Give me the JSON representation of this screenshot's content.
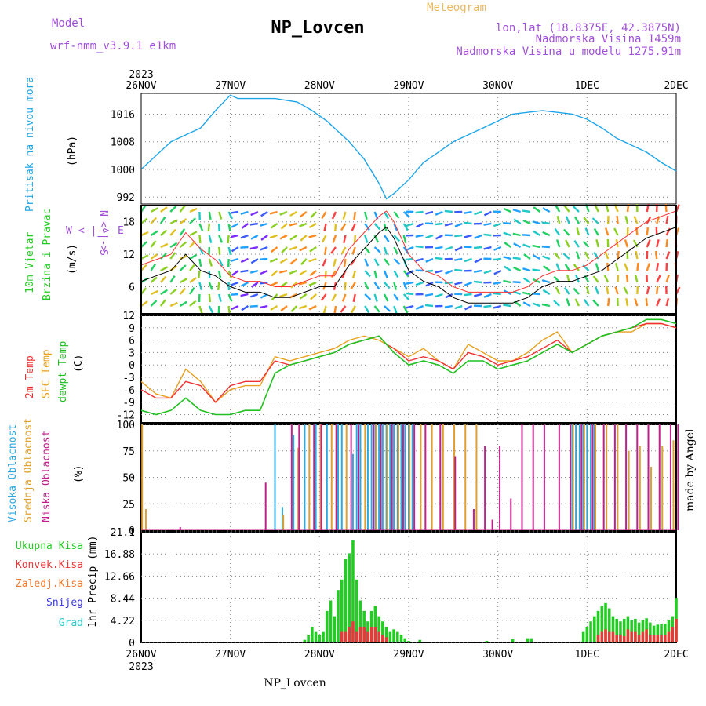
{
  "header": {
    "model_label": "Model",
    "model_name": "wrf-nmm_v3.9.1 e1km",
    "station": "NP_Lovcen",
    "title": "Meteogram",
    "coords": "lon,lat (18.8375E, 42.3875N)",
    "elevation": "Nadmorska Visina 1459m",
    "model_elevation": "Nadmorska Visina u modelu 1275.91m",
    "year_top": "2023",
    "year_bottom": "2023",
    "footer_station": "NP_Lovcen",
    "watermark": "made by Angel"
  },
  "time_axis": {
    "labels": [
      "26NOV",
      "27NOV",
      "28NOV",
      "29NOV",
      "30NOV",
      "1DEC",
      "2DEC"
    ],
    "hours_total": 144
  },
  "colors": {
    "pressure": "#1ea5e8",
    "wind_speed": "#000000",
    "gust": "#ff3030",
    "temp2m": "#f03030",
    "sfc_temp": "#e8a020",
    "dewpoint": "#20c020",
    "cloud_high": "#2aa8e0",
    "cloud_mid": "#e0a030",
    "cloud_low": "#c0208a",
    "precip_total": "#22cc22",
    "precip_conv": "#e83838",
    "precip_frz": "#f07a30",
    "snow": "#3838e0",
    "graupel": "#30c8c8"
  },
  "panels": {
    "pressure": {
      "label": "Pritisak na nivou mora",
      "unit": "(hPa)",
      "ticks": [
        "992",
        "1000",
        "1008",
        "1016"
      ],
      "ylim": [
        990,
        1022
      ]
    },
    "wind": {
      "label1": "10m Vjetar",
      "label2": "Brzina i Pravac",
      "unit": "(m/s)",
      "ticks": [
        "6",
        "12",
        "18"
      ],
      "ylim": [
        1,
        21
      ],
      "compass_w": "W",
      "compass_e": "E",
      "compass_n": "N",
      "compass_s": "S",
      "compass_arrows_h": "<-|->",
      "compass_arrows_v": "<-|->"
    },
    "temp": {
      "label_2m": "2m Temp",
      "label_sfc": "SFC Temp",
      "label_dew": "dewpt Temp",
      "unit": "(C)",
      "ticks": [
        "-12",
        "-9",
        "-6",
        "-3",
        "0",
        "3",
        "6",
        "9",
        "12"
      ],
      "ylim": [
        -14,
        12
      ]
    },
    "cloud": {
      "label_high": "Visoka Oblacnost",
      "label_mid": "Srednja Oblacnost",
      "label_low": "Niska Oblacnost",
      "unit": "(%)",
      "ticks": [
        "0",
        "25",
        "50",
        "75",
        "100"
      ],
      "ylim": [
        0,
        100
      ]
    },
    "precip": {
      "legend": [
        "Ukupna Kisa",
        "Konvek.Kisa",
        "Zaledj.Kisa",
        "Snijeg",
        "Grad"
      ],
      "label": "1hr Precip (mm)",
      "ticks": [
        "0",
        "4.22",
        "8.44",
        "12.66",
        "16.88",
        "21.1"
      ],
      "ylim": [
        0,
        21.1
      ]
    }
  },
  "chart_data": [
    {
      "type": "line",
      "title": "Pritisak na nivou mora",
      "ylabel": "(hPa)",
      "x_unit": "hours since 26NOV 00 UTC",
      "ylim": [
        990,
        1022
      ],
      "series": [
        {
          "name": "Pritisak na nivou mora",
          "x": [
            0,
            4,
            8,
            12,
            16,
            20,
            24,
            26,
            30,
            36,
            42,
            46,
            50,
            56,
            60,
            64,
            66,
            68,
            72,
            76,
            80,
            84,
            88,
            92,
            96,
            100,
            104,
            108,
            112,
            116,
            120,
            124,
            128,
            132,
            136,
            140,
            144
          ],
          "values": [
            1000,
            1004,
            1008,
            1010,
            1012,
            1017,
            1021.5,
            1020.5,
            1020.5,
            1020.5,
            1019.5,
            1017,
            1014,
            1008,
            1003,
            996,
            991.5,
            993,
            997,
            1002,
            1005,
            1008,
            1010,
            1012,
            1014,
            1016,
            1016.5,
            1017,
            1016.5,
            1016,
            1014.5,
            1012,
            1009,
            1007,
            1005,
            1002,
            999.5
          ]
        }
      ]
    },
    {
      "type": "line",
      "title": "10m Vjetar Brzina i Pravac",
      "ylabel": "(m/s)",
      "x_unit": "hours since 26NOV 00 UTC",
      "ylim": [
        1,
        21
      ],
      "series": [
        {
          "name": "wind speed",
          "x": [
            0,
            4,
            8,
            12,
            16,
            20,
            24,
            28,
            32,
            36,
            40,
            44,
            48,
            52,
            56,
            60,
            64,
            66,
            68,
            72,
            76,
            80,
            84,
            88,
            92,
            96,
            100,
            104,
            108,
            112,
            116,
            120,
            124,
            128,
            132,
            136,
            140,
            144
          ],
          "values": [
            7,
            8,
            9,
            12,
            9,
            8,
            6,
            5,
            5,
            4,
            4,
            5,
            6,
            6,
            10,
            13,
            16,
            17,
            15,
            9,
            7,
            6,
            4,
            3,
            3,
            3,
            3,
            4,
            6,
            7,
            7,
            8,
            9,
            11,
            13,
            15,
            16,
            17
          ]
        },
        {
          "name": "gust",
          "x": [
            0,
            4,
            8,
            12,
            16,
            20,
            24,
            28,
            32,
            36,
            40,
            44,
            48,
            52,
            56,
            60,
            64,
            66,
            68,
            72,
            76,
            80,
            84,
            88,
            92,
            96,
            100,
            104,
            108,
            112,
            116,
            120,
            124,
            128,
            132,
            136,
            140,
            144
          ],
          "values": [
            10,
            11,
            12,
            16,
            13,
            11,
            8,
            7,
            7,
            6,
            6,
            7,
            8,
            8,
            13,
            16,
            19,
            20,
            18,
            12,
            9,
            8,
            6,
            5,
            5,
            5,
            5,
            6,
            8,
            9,
            9,
            10,
            12,
            14,
            16,
            18,
            19,
            20
          ]
        }
      ]
    },
    {
      "type": "line",
      "title": "2m Temp / SFC Temp / dewpt Temp",
      "ylabel": "(C)",
      "x_unit": "hours since 26NOV 00 UTC",
      "ylim": [
        -14,
        12
      ],
      "series": [
        {
          "name": "2m Temp",
          "x": [
            0,
            4,
            8,
            12,
            16,
            20,
            24,
            28,
            32,
            36,
            40,
            44,
            48,
            52,
            56,
            60,
            64,
            66,
            68,
            72,
            76,
            80,
            84,
            88,
            92,
            96,
            100,
            104,
            108,
            112,
            116,
            120,
            124,
            128,
            132,
            136,
            140,
            144
          ],
          "values": [
            -6,
            -8,
            -8,
            -4,
            -5,
            -9,
            -5,
            -4,
            -4,
            1,
            0,
            1,
            2,
            3,
            5,
            6,
            7,
            5,
            4,
            1,
            2,
            1,
            -1,
            3,
            2,
            0,
            1,
            2,
            4,
            6,
            3,
            5,
            7,
            8,
            9,
            10,
            10,
            9
          ]
        },
        {
          "name": "SFC Temp",
          "x": [
            0,
            4,
            8,
            12,
            16,
            20,
            24,
            28,
            32,
            36,
            40,
            44,
            48,
            52,
            56,
            60,
            64,
            66,
            68,
            72,
            76,
            80,
            84,
            88,
            92,
            96,
            100,
            104,
            108,
            112,
            116,
            120,
            124,
            128,
            132,
            136,
            140,
            144
          ],
          "values": [
            -4,
            -7,
            -8,
            -1,
            -4,
            -9,
            -6,
            -5,
            -5,
            2,
            1,
            2,
            3,
            4,
            6,
            7,
            6,
            5,
            4,
            2,
            4,
            1,
            -1,
            5,
            3,
            1,
            1,
            3,
            6,
            8,
            3,
            5,
            7,
            8,
            8,
            10,
            10,
            9
          ]
        },
        {
          "name": "dewpt Temp",
          "x": [
            0,
            4,
            8,
            12,
            16,
            20,
            24,
            28,
            32,
            36,
            40,
            44,
            48,
            52,
            56,
            60,
            64,
            66,
            68,
            72,
            76,
            80,
            84,
            88,
            92,
            96,
            100,
            104,
            108,
            112,
            116,
            120,
            124,
            128,
            132,
            136,
            140,
            144
          ],
          "values": [
            -11,
            -12,
            -11,
            -8,
            -11,
            -12,
            -12,
            -11,
            -11,
            -2,
            0,
            1,
            2,
            3,
            5,
            6,
            7,
            5,
            3,
            0,
            1,
            0,
            -2,
            1,
            1,
            -1,
            0,
            1,
            3,
            5,
            3,
            5,
            7,
            8,
            9,
            11,
            11,
            10
          ]
        }
      ]
    },
    {
      "type": "bar",
      "title": "Oblacnost",
      "ylabel": "(%)",
      "x_unit": "hours since 26NOV 00 UTC",
      "ylim": [
        0,
        100
      ],
      "series": [
        {
          "name": "Visoka Oblacnost",
          "x": [
            36,
            38,
            41,
            44,
            47,
            50,
            53,
            54,
            57,
            58,
            59,
            61,
            62,
            63,
            64,
            65,
            66,
            67,
            68,
            69,
            70,
            71,
            72,
            73,
            116,
            117,
            118,
            119,
            120,
            121,
            122
          ],
          "values": [
            100,
            22,
            90,
            100,
            100,
            100,
            100,
            100,
            72,
            100,
            100,
            100,
            100,
            100,
            100,
            100,
            100,
            100,
            100,
            100,
            100,
            100,
            100,
            100,
            100,
            100,
            100,
            100,
            100,
            100,
            100
          ]
        },
        {
          "name": "Srednja Oblacnost",
          "x": [
            0,
            1,
            38,
            42,
            45,
            48,
            51,
            55,
            60,
            63,
            66,
            69,
            72,
            75,
            78,
            81,
            84,
            87,
            90,
            116,
            119,
            122,
            125,
            128,
            131,
            134,
            137,
            140,
            143
          ],
          "values": [
            100,
            20,
            15,
            78,
            100,
            100,
            100,
            100,
            100,
            100,
            100,
            100,
            100,
            100,
            100,
            100,
            100,
            100,
            100,
            100,
            100,
            100,
            100,
            100,
            75,
            80,
            60,
            80,
            85
          ]
        },
        {
          "name": "Niska Oblacnost",
          "x": [
            10,
            33,
            40,
            42,
            46,
            48,
            52,
            56,
            58,
            62,
            64,
            67,
            70,
            73,
            76,
            80,
            84,
            89,
            92,
            94,
            96,
            99,
            102,
            105,
            108,
            112,
            115,
            118,
            121,
            124,
            127,
            130,
            133,
            136,
            139,
            142,
            144
          ],
          "values": [
            3,
            45,
            100,
            100,
            100,
            100,
            100,
            100,
            100,
            100,
            100,
            100,
            100,
            100,
            100,
            100,
            70,
            20,
            80,
            10,
            80,
            30,
            100,
            100,
            100,
            100,
            100,
            100,
            100,
            100,
            100,
            100,
            100,
            100,
            100,
            100,
            100
          ]
        }
      ]
    },
    {
      "type": "bar",
      "title": "1hr Precip",
      "ylabel": "(mm)",
      "x_unit": "hours since 26NOV 00 UTC",
      "ylim": [
        0,
        21.1
      ],
      "series": [
        {
          "name": "Ukupna Kisa",
          "x": [
            44,
            45,
            46,
            47,
            48,
            49,
            50,
            51,
            52,
            53,
            54,
            55,
            56,
            57,
            58,
            59,
            60,
            61,
            62,
            63,
            64,
            65,
            66,
            67,
            68,
            69,
            70,
            71,
            72,
            75,
            93,
            100,
            104,
            105,
            119,
            120,
            121,
            122,
            123,
            124,
            125,
            126,
            127,
            128,
            129,
            130,
            131,
            132,
            133,
            134,
            135,
            136,
            137,
            138,
            139,
            140,
            141,
            142,
            143,
            144
          ],
          "values": [
            0.5,
            1.5,
            3,
            2,
            1.5,
            2,
            6,
            8,
            5,
            10,
            12,
            16,
            17,
            19.5,
            12,
            8,
            6,
            4,
            6,
            7,
            5,
            4,
            3,
            2,
            2.5,
            2,
            1.5,
            0.8,
            0.3,
            0.5,
            0.3,
            0.6,
            0.8,
            0.8,
            2,
            3,
            4,
            5,
            6,
            7,
            7.5,
            6.5,
            5,
            4.5,
            4,
            4.5,
            5,
            4.2,
            4.5,
            3.8,
            4.2,
            4.6,
            3.8,
            3.2,
            3.4,
            3.6,
            3.6,
            4.3,
            5,
            8.5
          ]
        },
        {
          "name": "Konvek.Kisa",
          "x": [
            54,
            55,
            56,
            57,
            58,
            59,
            60,
            61,
            62,
            63,
            64,
            65,
            66,
            123,
            124,
            125,
            126,
            127,
            128,
            129,
            130,
            131,
            132,
            133,
            134,
            135,
            136,
            137,
            138,
            139,
            140,
            141,
            142,
            143,
            144
          ],
          "values": [
            2,
            2,
            3,
            4,
            2,
            3,
            3,
            2,
            3,
            3,
            2,
            1.5,
            1,
            1.5,
            2,
            2.5,
            2,
            2,
            1.5,
            1.5,
            1.2,
            2.5,
            2,
            2,
            1.5,
            2,
            2.5,
            1.5,
            1.5,
            1.5,
            1.5,
            1.5,
            2,
            3,
            4.5
          ]
        }
      ]
    }
  ]
}
